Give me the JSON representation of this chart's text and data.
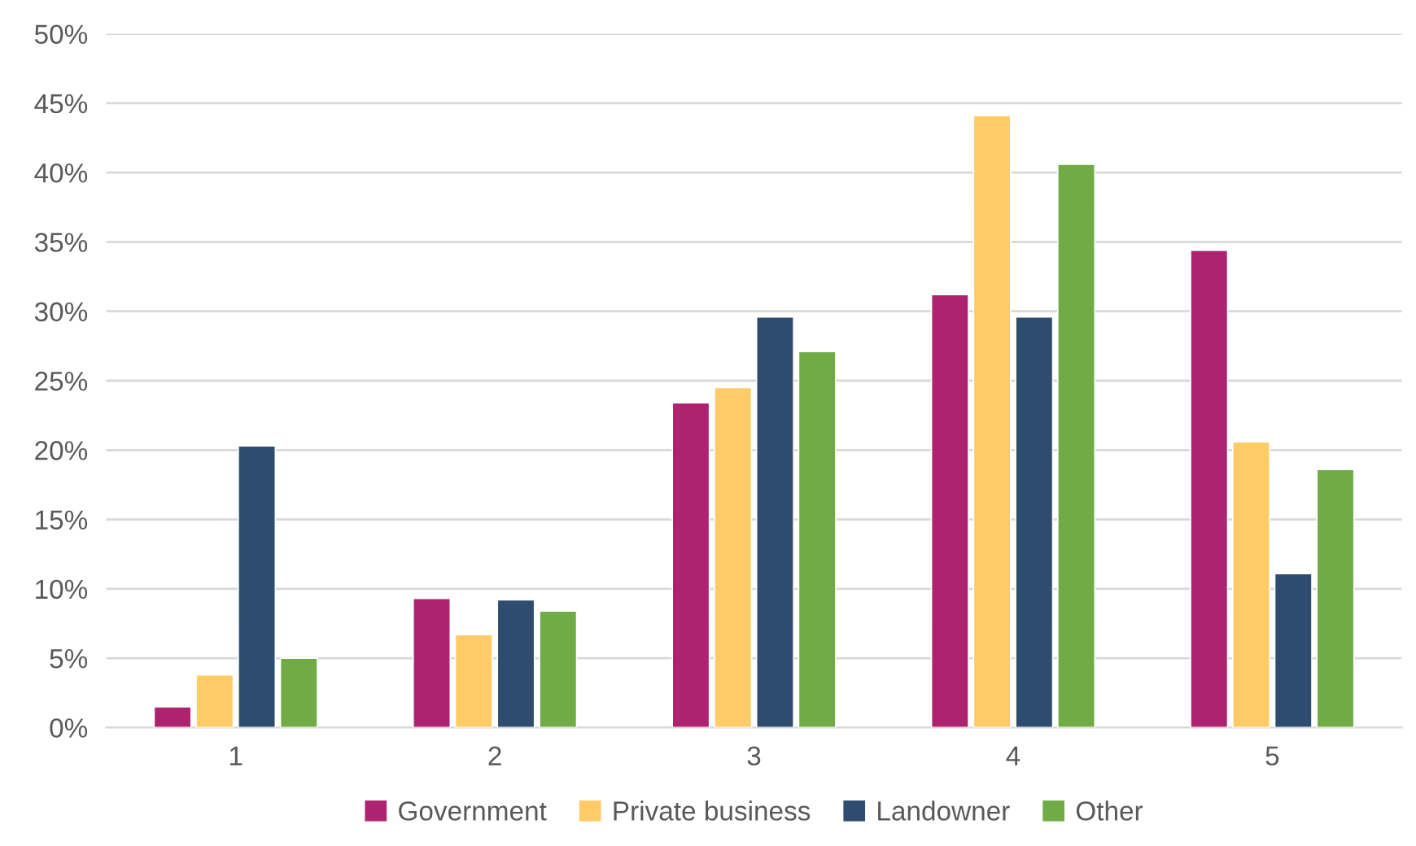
{
  "chart_data": {
    "type": "bar",
    "categories": [
      "1",
      "2",
      "3",
      "4",
      "5"
    ],
    "series": [
      {
        "name": "Government",
        "color": "#ad2370",
        "values": [
          1.5,
          9.3,
          23.4,
          31.2,
          34.4
        ]
      },
      {
        "name": "Private business",
        "color": "#ffcb66",
        "values": [
          3.8,
          6.7,
          24.5,
          44.1,
          20.6
        ]
      },
      {
        "name": "Landowner",
        "color": "#2e4c6f",
        "values": [
          20.3,
          9.2,
          29.6,
          29.6,
          11.1
        ]
      },
      {
        "name": "Other",
        "color": "#70ab46",
        "values": [
          5.0,
          8.4,
          27.1,
          40.6,
          18.6
        ]
      }
    ],
    "ylim": [
      0,
      50
    ],
    "yticks": [
      {
        "value": 0,
        "label": "0%"
      },
      {
        "value": 5,
        "label": "5%"
      },
      {
        "value": 10,
        "label": "10%"
      },
      {
        "value": 15,
        "label": "15%"
      },
      {
        "value": 20,
        "label": "20%"
      },
      {
        "value": 25,
        "label": "25%"
      },
      {
        "value": 30,
        "label": "30%"
      },
      {
        "value": 35,
        "label": "35%"
      },
      {
        "value": 40,
        "label": "40%"
      },
      {
        "value": 45,
        "label": "45%"
      },
      {
        "value": 50,
        "label": "50%"
      }
    ],
    "grid": "y",
    "legend": "bottom"
  }
}
